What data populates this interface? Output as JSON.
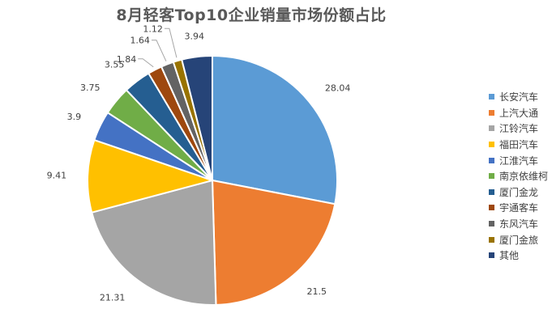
{
  "chart_data": {
    "type": "pie",
    "title": "8月轻客Top10企业销量市场份额占比",
    "categories": [
      "长安汽车",
      "上汽大通",
      "江铃汽车",
      "福田汽车",
      "江淮汽车",
      "南京依维柯",
      "厦门金龙",
      "宇通客车",
      "东风汽车",
      "厦门金旅",
      "其他"
    ],
    "values": [
      28.04,
      21.5,
      21.31,
      9.41,
      3.9,
      3.75,
      3.55,
      1.84,
      1.64,
      1.12,
      3.94
    ],
    "labels": [
      "28.04",
      "21.5",
      "21.31",
      "9.41",
      "3.9",
      "3.75",
      "3.55",
      "1.84",
      "1.64",
      "1.12",
      "3.94"
    ],
    "colors": [
      "#5B9BD5",
      "#ED7D31",
      "#A5A5A5",
      "#FFC000",
      "#4472C4",
      "#70AD47",
      "#255E91",
      "#9E480E",
      "#636363",
      "#997300",
      "#264478"
    ],
    "legend_position": "right",
    "start_angle": "12 o'clock",
    "direction": "clockwise"
  }
}
